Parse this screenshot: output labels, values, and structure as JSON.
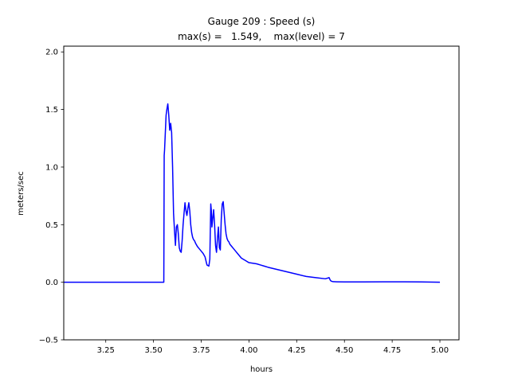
{
  "chart_data": {
    "type": "line",
    "title_line1": "Gauge 209 : Speed (s)",
    "title_line2": "max(s) =   1.549,    max(level) = 7",
    "xlabel": "hours",
    "ylabel": "meters/sec",
    "xlim": [
      3.03,
      5.1
    ],
    "ylim": [
      -0.5,
      2.05
    ],
    "xticks": [
      3.25,
      3.5,
      3.75,
      4.0,
      4.25,
      4.5,
      4.75,
      5.0
    ],
    "xtick_labels": [
      "3.25",
      "3.50",
      "3.75",
      "4.00",
      "4.25",
      "4.50",
      "4.75",
      "5.00"
    ],
    "yticks": [
      -0.5,
      0.0,
      0.5,
      1.0,
      1.5,
      2.0
    ],
    "ytick_labels": [
      "−0.5",
      "0.0",
      "0.5",
      "1.0",
      "1.5",
      "2.0"
    ],
    "grid": false,
    "series": [
      {
        "color": "#0000ff",
        "x": [
          3.03,
          3.1,
          3.2,
          3.3,
          3.4,
          3.5,
          3.554,
          3.556,
          3.558,
          3.562,
          3.566,
          3.57,
          3.575,
          3.58,
          3.585,
          3.59,
          3.595,
          3.6,
          3.605,
          3.61,
          3.615,
          3.62,
          3.625,
          3.63,
          3.635,
          3.64,
          3.645,
          3.65,
          3.655,
          3.66,
          3.665,
          3.67,
          3.675,
          3.68,
          3.685,
          3.69,
          3.695,
          3.7,
          3.705,
          3.71,
          3.715,
          3.72,
          3.73,
          3.74,
          3.75,
          3.76,
          3.77,
          3.78,
          3.79,
          3.795,
          3.8,
          3.803,
          3.806,
          3.81,
          3.815,
          3.82,
          3.825,
          3.83,
          3.835,
          3.84,
          3.845,
          3.85,
          3.855,
          3.86,
          3.865,
          3.87,
          3.875,
          3.88,
          3.885,
          3.89,
          3.895,
          3.9,
          3.91,
          3.92,
          3.93,
          3.94,
          3.95,
          3.96,
          3.97,
          3.98,
          3.99,
          4.0,
          4.02,
          4.04,
          4.06,
          4.08,
          4.1,
          4.15,
          4.2,
          4.25,
          4.3,
          4.35,
          4.4,
          4.42,
          4.425,
          4.43,
          4.44,
          4.46,
          4.5,
          4.6,
          4.7,
          4.8,
          4.9,
          5.0
        ],
        "y": [
          0.0,
          0.0,
          0.0,
          0.0,
          0.0,
          0.0,
          0.0,
          1.1,
          1.15,
          1.3,
          1.45,
          1.5,
          1.549,
          1.45,
          1.32,
          1.38,
          1.3,
          1.0,
          0.6,
          0.45,
          0.32,
          0.48,
          0.5,
          0.42,
          0.3,
          0.27,
          0.26,
          0.36,
          0.5,
          0.6,
          0.69,
          0.62,
          0.58,
          0.64,
          0.69,
          0.62,
          0.5,
          0.43,
          0.39,
          0.37,
          0.36,
          0.34,
          0.31,
          0.29,
          0.27,
          0.25,
          0.22,
          0.15,
          0.14,
          0.2,
          0.68,
          0.62,
          0.48,
          0.55,
          0.63,
          0.5,
          0.32,
          0.26,
          0.38,
          0.48,
          0.3,
          0.28,
          0.55,
          0.68,
          0.7,
          0.6,
          0.5,
          0.42,
          0.38,
          0.36,
          0.35,
          0.33,
          0.31,
          0.29,
          0.27,
          0.25,
          0.23,
          0.21,
          0.2,
          0.19,
          0.18,
          0.17,
          0.165,
          0.16,
          0.15,
          0.14,
          0.13,
          0.11,
          0.09,
          0.07,
          0.05,
          0.04,
          0.03,
          0.04,
          0.02,
          0.01,
          0.005,
          0.004,
          0.003,
          0.003,
          0.004,
          0.004,
          0.003,
          0.0
        ]
      }
    ]
  }
}
